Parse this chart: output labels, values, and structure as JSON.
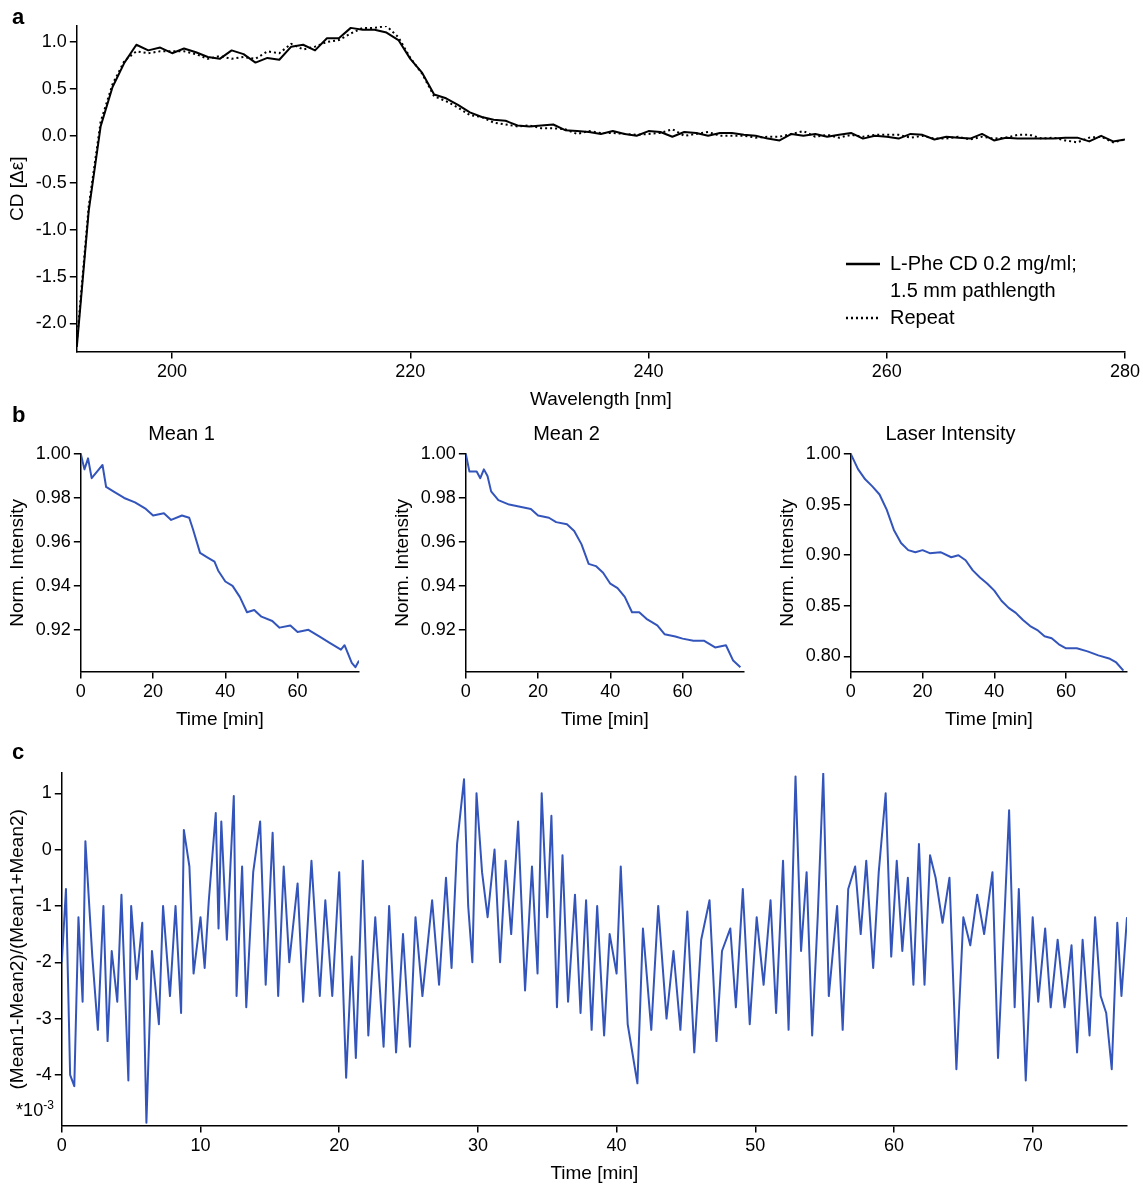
{
  "chart_data": [
    {
      "type": "line",
      "xlabel": "Wavelength [nm]",
      "ylabel": "CD [Δε]",
      "annotations": [
        "a"
      ],
      "legend": "bottom right",
      "x": [
        192,
        193,
        194,
        195,
        196,
        197,
        198,
        199,
        200,
        201,
        202,
        203,
        204,
        205,
        206,
        207,
        208,
        209,
        210,
        211,
        212,
        213,
        214,
        215,
        216,
        217,
        218,
        219,
        220,
        221,
        222,
        223,
        224,
        225,
        226,
        227,
        228,
        229,
        230,
        231,
        232,
        233,
        234,
        235,
        236,
        237,
        238,
        239,
        240,
        241,
        242,
        243,
        244,
        245,
        246,
        247,
        248,
        249,
        250,
        251,
        252,
        253,
        254,
        255,
        256,
        257,
        258,
        259,
        260,
        261,
        262,
        263,
        264,
        265,
        266,
        267,
        268,
        269,
        270,
        271,
        272,
        273,
        274,
        275,
        276,
        277,
        278,
        279,
        280
      ],
      "xlim": [
        192,
        280
      ],
      "xticks": [
        200,
        220,
        240,
        260,
        280
      ],
      "ylim": [
        -2.3,
        1.17
      ],
      "yticks": [
        {
          "value": -2,
          "label": "-2.0"
        },
        -1.5,
        {
          "value": -1,
          "label": "-1.0"
        },
        -0.5,
        {
          "value": 0,
          "label": "0.0"
        },
        0.5,
        {
          "value": 1,
          "label": "1.0"
        }
      ],
      "series": [
        {
          "name": "L-Phe CD 0.2 mg/ml; 1.5 mm pathlength",
          "color": "#000000",
          "line_style": "solid",
          "values": [
            -2.25,
            -0.8,
            0.1,
            0.52,
            0.78,
            0.97,
            0.91,
            0.94,
            0.88,
            0.93,
            0.89,
            0.84,
            0.82,
            0.91,
            0.87,
            0.78,
            0.83,
            0.81,
            0.95,
            0.97,
            0.91,
            1.04,
            1.04,
            1.15,
            1.13,
            1.13,
            1.1,
            1.02,
            0.82,
            0.67,
            0.44,
            0.4,
            0.33,
            0.25,
            0.2,
            0.17,
            0.16,
            0.11,
            0.1,
            0.11,
            0.12,
            0.06,
            0.05,
            0.04,
            0.02,
            0.05,
            0.02,
            0.0,
            0.05,
            0.04,
            -0.01,
            0.04,
            0.03,
            0.0,
            0.03,
            0.03,
            0.01,
            0.0,
            -0.03,
            -0.05,
            0.02,
            0.0,
            0.02,
            -0.01,
            0.01,
            0.03,
            -0.03,
            0.0,
            -0.01,
            -0.03,
            0.02,
            0.01,
            -0.04,
            -0.01,
            -0.02,
            -0.03,
            0.02,
            -0.05,
            -0.02,
            -0.03,
            -0.03,
            -0.03,
            -0.03,
            -0.02,
            -0.02,
            -0.06,
            0.0,
            -0.06,
            -0.04
          ]
        },
        {
          "name": "Repeat",
          "color": "#000000",
          "line_style": "dotted",
          "values": [
            -2.2,
            -0.75,
            0.15,
            0.55,
            0.8,
            0.9,
            0.88,
            0.9,
            0.9,
            0.9,
            0.87,
            0.82,
            0.85,
            0.82,
            0.84,
            0.82,
            0.9,
            0.88,
            0.98,
            0.92,
            0.95,
            1.0,
            1.02,
            1.09,
            1.15,
            1.15,
            1.17,
            1.05,
            0.83,
            0.66,
            0.42,
            0.37,
            0.3,
            0.22,
            0.2,
            0.14,
            0.12,
            0.1,
            0.11,
            0.08,
            0.08,
            0.07,
            0.02,
            0.05,
            0.03,
            0.03,
            0.02,
            0.01,
            0.02,
            0.03,
            0.07,
            0.0,
            0.02,
            0.04,
            0.0,
            0.0,
            0.0,
            -0.02,
            -0.01,
            -0.01,
            0.02,
            0.05,
            -0.01,
            0.01,
            -0.02,
            0.01,
            -0.01,
            0.01,
            0.01,
            0.01,
            -0.02,
            0.0,
            -0.03,
            -0.03,
            -0.01,
            -0.04,
            -0.01,
            -0.03,
            -0.02,
            0.01,
            0.01,
            -0.03,
            -0.02,
            -0.05,
            -0.07,
            -0.02,
            -0.01,
            -0.07,
            -0.04
          ]
        }
      ]
    },
    {
      "type": "line",
      "title": "Mean 1",
      "xlabel": "Time [min]",
      "ylabel": "Norm. Intensity",
      "annotations": [
        "b"
      ],
      "xlim": [
        0,
        77
      ],
      "xticks": [
        0,
        20,
        40,
        60
      ],
      "ylim": [
        0.901,
        1.0
      ],
      "yticks": [
        0.92,
        0.94,
        0.96,
        0.98,
        {
          "value": 1,
          "label": "1.00"
        }
      ],
      "series": [
        {
          "color": "#3355bb",
          "x": [
            0,
            1,
            2,
            3,
            5,
            6,
            7,
            9,
            12,
            15,
            18,
            20,
            23,
            25,
            28,
            30,
            31,
            33,
            35,
            37,
            38,
            40,
            42,
            44,
            46,
            48,
            50,
            53,
            55,
            58,
            60,
            63,
            66,
            69,
            72,
            73,
            75,
            76,
            77
          ],
          "values": [
            1.0,
            0.993,
            0.998,
            0.989,
            0.993,
            0.995,
            0.985,
            0.983,
            0.98,
            0.978,
            0.975,
            0.972,
            0.973,
            0.97,
            0.972,
            0.971,
            0.966,
            0.955,
            0.953,
            0.951,
            0.947,
            0.942,
            0.94,
            0.935,
            0.928,
            0.929,
            0.926,
            0.924,
            0.921,
            0.922,
            0.919,
            0.92,
            0.917,
            0.914,
            0.911,
            0.913,
            0.905,
            0.903,
            0.906
          ]
        }
      ]
    },
    {
      "type": "line",
      "title": "Mean 2",
      "xlabel": "Time [min]",
      "ylabel": "Norm. Intensity",
      "xlim": [
        0,
        77
      ],
      "xticks": [
        0,
        20,
        40,
        60
      ],
      "ylim": [
        0.901,
        1.0
      ],
      "yticks": [
        0.92,
        0.94,
        0.96,
        0.98,
        {
          "value": 1,
          "label": "1.00"
        }
      ],
      "series": [
        {
          "color": "#3355bb",
          "x": [
            0,
            1,
            3,
            4,
            5,
            6,
            7,
            9,
            12,
            15,
            18,
            20,
            23,
            25,
            28,
            30,
            32,
            34,
            36,
            38,
            40,
            42,
            44,
            46,
            48,
            50,
            53,
            55,
            58,
            60,
            63,
            66,
            69,
            72,
            74,
            76
          ],
          "values": [
            1.0,
            0.992,
            0.992,
            0.989,
            0.993,
            0.99,
            0.983,
            0.979,
            0.977,
            0.976,
            0.975,
            0.972,
            0.971,
            0.969,
            0.968,
            0.965,
            0.959,
            0.95,
            0.949,
            0.946,
            0.941,
            0.939,
            0.935,
            0.928,
            0.928,
            0.925,
            0.922,
            0.918,
            0.917,
            0.916,
            0.915,
            0.915,
            0.912,
            0.913,
            0.906,
            0.903
          ]
        }
      ]
    },
    {
      "type": "line",
      "title": "Laser Intensity",
      "xlabel": "Time [min]",
      "ylabel": "Norm. Intensity",
      "xlim": [
        0,
        77
      ],
      "xticks": [
        0,
        20,
        40,
        60
      ],
      "ylim": [
        0.785,
        1.0
      ],
      "yticks": [
        {
          "value": 0.8,
          "label": "0.80"
        },
        0.85,
        {
          "value": 0.9,
          "label": "0.90"
        },
        0.95,
        {
          "value": 1,
          "label": "1.00"
        }
      ],
      "series": [
        {
          "color": "#3355bb",
          "x": [
            0,
            2,
            4,
            6,
            8,
            10,
            12,
            14,
            16,
            18,
            20,
            22,
            25,
            28,
            30,
            32,
            34,
            36,
            38,
            40,
            42,
            44,
            46,
            48,
            50,
            52,
            54,
            56,
            58,
            60,
            63,
            66,
            69,
            72,
            74,
            76
          ],
          "values": [
            1.0,
            0.985,
            0.975,
            0.968,
            0.96,
            0.945,
            0.925,
            0.912,
            0.905,
            0.903,
            0.905,
            0.902,
            0.903,
            0.898,
            0.9,
            0.895,
            0.885,
            0.878,
            0.872,
            0.865,
            0.855,
            0.848,
            0.843,
            0.836,
            0.83,
            0.826,
            0.82,
            0.818,
            0.812,
            0.808,
            0.808,
            0.805,
            0.801,
            0.798,
            0.794,
            0.786
          ]
        }
      ]
    },
    {
      "type": "line",
      "xlabel": "Time [min]",
      "ylabel": "(Mean1-Mean2)/(Mean1+Mean2)",
      "annotations": [
        "c",
        "*10$^{-3}$"
      ],
      "xlim": [
        0,
        76.8
      ],
      "xticks": [
        0,
        10,
        20,
        30,
        40,
        50,
        60,
        70
      ],
      "ylim": [
        -4.9,
        1.36
      ],
      "yticks": [
        -4,
        -3,
        -2,
        -1,
        0,
        1
      ],
      "series": [
        {
          "color": "#3355bb",
          "x": [
            0,
            0.3,
            0.6,
            0.9,
            1.2,
            1.5,
            1.7,
            2.2,
            2.6,
            3.0,
            3.3,
            3.6,
            4.0,
            4.3,
            4.8,
            5.0,
            5.4,
            5.8,
            6.1,
            6.5,
            7.0,
            7.3,
            7.8,
            8.2,
            8.6,
            8.8,
            9.2,
            9.5,
            10.0,
            10.3,
            10.6,
            11.1,
            11.3,
            11.5,
            11.9,
            12.4,
            12.6,
            13.0,
            13.3,
            13.8,
            14.3,
            14.7,
            15.2,
            15.6,
            16.0,
            16.4,
            17.0,
            17.4,
            18.0,
            18.6,
            19.0,
            19.5,
            20.0,
            20.5,
            20.9,
            21.2,
            21.7,
            22.1,
            22.6,
            23.2,
            23.6,
            24.1,
            24.6,
            25.1,
            25.5,
            26.0,
            26.7,
            27.2,
            27.7,
            28.1,
            28.5,
            29.0,
            29.3,
            29.6,
            29.9,
            30.3,
            30.7,
            31.2,
            31.6,
            32.0,
            32.4,
            32.9,
            33.4,
            33.9,
            34.3,
            34.6,
            35.0,
            35.3,
            35.7,
            36.1,
            36.5,
            37.0,
            37.4,
            37.8,
            38.2,
            38.6,
            39.1,
            39.5,
            40.0,
            40.3,
            40.8,
            41.5,
            41.9,
            42.5,
            43.0,
            43.6,
            44.1,
            44.6,
            45.1,
            45.6,
            46.1,
            46.7,
            47.2,
            47.6,
            48.2,
            48.6,
            49.1,
            49.6,
            50.1,
            50.6,
            51.1,
            51.5,
            52.0,
            52.4,
            52.9,
            53.3,
            53.7,
            54.1,
            54.5,
            54.9,
            55.3,
            55.9,
            56.3,
            56.7,
            57.2,
            57.6,
            58.0,
            58.5,
            58.9,
            59.4,
            59.8,
            60.2,
            60.6,
            61.0,
            61.4,
            61.8,
            62.2,
            62.6,
            63.0,
            63.5,
            64.0,
            64.5,
            65.0,
            65.5,
            66.0,
            66.5,
            67.1,
            67.5,
            68.0,
            68.3,
            68.7,
            69.0,
            69.5,
            70.0,
            70.4,
            70.9,
            71.3,
            71.8,
            72.3,
            72.8,
            73.2,
            73.6,
            74.1,
            74.5,
            74.9,
            75.3,
            75.7,
            76.1,
            76.4,
            76.8
          ],
          "values": [
            -2.0,
            -0.7,
            -4.0,
            -4.2,
            -1.2,
            -2.7,
            0.15,
            -1.9,
            -3.2,
            -1.0,
            -3.4,
            -1.8,
            -2.7,
            -0.8,
            -4.1,
            -1.0,
            -2.3,
            -1.3,
            -4.85,
            -1.8,
            -3.1,
            -1.0,
            -2.6,
            -1.0,
            -2.9,
            0.35,
            -0.3,
            -2.2,
            -1.2,
            -2.1,
            -0.9,
            0.65,
            -1.4,
            0.5,
            -1.6,
            0.95,
            -2.6,
            -0.3,
            -2.8,
            -0.4,
            0.5,
            -2.4,
            0.3,
            -2.6,
            -0.3,
            -2.0,
            -0.6,
            -2.7,
            -0.2,
            -2.6,
            -0.9,
            -2.6,
            -0.4,
            -4.05,
            -1.9,
            -3.7,
            -0.2,
            -3.3,
            -1.2,
            -3.5,
            -1.0,
            -3.6,
            -1.5,
            -3.5,
            -1.2,
            -2.6,
            -0.9,
            -2.4,
            -0.5,
            -2.1,
            0.1,
            1.25,
            -1.0,
            -2.0,
            1.0,
            -0.4,
            -1.2,
            0.0,
            -2.0,
            -0.2,
            -1.5,
            0.5,
            -2.5,
            -0.3,
            -2.2,
            1.0,
            -1.2,
            0.6,
            -2.8,
            -0.1,
            -2.7,
            -0.8,
            -2.9,
            -0.9,
            -3.2,
            -1.0,
            -3.3,
            -1.5,
            -2.2,
            -0.3,
            -3.1,
            -4.15,
            -1.4,
            -3.2,
            -1.0,
            -3.0,
            -1.8,
            -3.2,
            -1.1,
            -3.6,
            -1.6,
            -0.9,
            -3.4,
            -1.8,
            -1.4,
            -2.8,
            -0.7,
            -3.1,
            -1.2,
            -2.4,
            -0.9,
            -2.9,
            -0.2,
            -3.2,
            1.3,
            -1.8,
            -0.4,
            -3.3,
            -1.2,
            1.35,
            -2.6,
            -1.0,
            -3.2,
            -0.7,
            -0.3,
            -1.5,
            -0.2,
            -2.1,
            -0.4,
            1.0,
            -1.9,
            -0.2,
            -1.8,
            -0.5,
            -2.4,
            0.1,
            -2.4,
            -0.1,
            -0.5,
            -1.3,
            -0.5,
            -3.9,
            -1.2,
            -1.7,
            -0.8,
            -1.5,
            -0.4,
            -3.7,
            -1.0,
            0.7,
            -2.8,
            -0.7,
            -4.1,
            -1.2,
            -2.7,
            -1.4,
            -2.8,
            -1.6,
            -2.8,
            -1.7,
            -3.6,
            -1.6,
            -3.3,
            -1.2,
            -2.6,
            -2.9,
            -3.9,
            -1.3,
            -2.6,
            -1.2
          ]
        }
      ]
    }
  ]
}
